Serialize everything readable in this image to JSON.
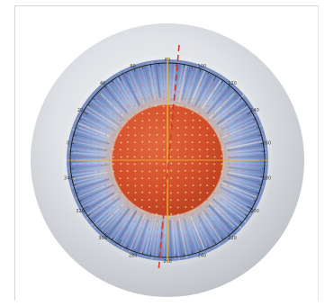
{
  "figure": {
    "tick_labels": [
      "80",
      "100",
      "120",
      "140",
      "160",
      "180",
      "200",
      "220",
      "240",
      "260",
      "280",
      "300",
      "320",
      "340",
      "0",
      "20",
      "40",
      "60"
    ],
    "colors": {
      "sclera": "#e9ecef",
      "iris": "#7f98c9",
      "pupil": "#d2502b",
      "overlay_line": "#d33a2a",
      "axis_line": "#e8b72e"
    },
    "icon": "eye-iris-graph-icon"
  }
}
